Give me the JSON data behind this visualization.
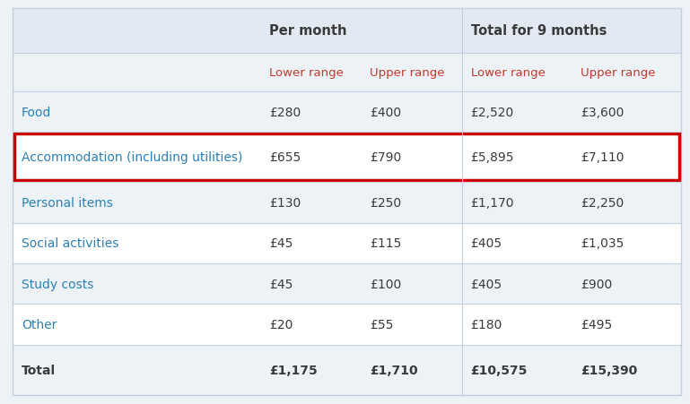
{
  "col_headers_row1": [
    "",
    "Per month",
    "",
    "Total for 9 months",
    ""
  ],
  "col_headers_row2": [
    "",
    "Lower range",
    "Upper range",
    "Lower range",
    "Upper range"
  ],
  "rows": [
    {
      "label": "Food",
      "values": [
        "£280",
        "£400",
        "£2,520",
        "£3,600"
      ],
      "bold": false,
      "highlight": false
    },
    {
      "label": "Accommodation (including utilities)",
      "values": [
        "£655",
        "£790",
        "£5,895",
        "£7,110"
      ],
      "bold": false,
      "highlight": true
    },
    {
      "label": "Personal items",
      "values": [
        "£130",
        "£250",
        "£1,170",
        "£2,250"
      ],
      "bold": false,
      "highlight": false
    },
    {
      "label": "Social activities",
      "values": [
        "£45",
        "£115",
        "£405",
        "£1,035"
      ],
      "bold": false,
      "highlight": false
    },
    {
      "label": "Study costs",
      "values": [
        "£45",
        "£100",
        "£405",
        "£900"
      ],
      "bold": false,
      "highlight": false
    },
    {
      "label": "Other",
      "values": [
        "£20",
        "£55",
        "£180",
        "£495"
      ],
      "bold": false,
      "highlight": false
    },
    {
      "label": "Total",
      "values": [
        "£1,175",
        "£1,710",
        "£10,575",
        "£15,390"
      ],
      "bold": true,
      "highlight": false
    }
  ],
  "bg_light": "#edf2f7",
  "bg_white": "#ffffff",
  "bg_header": "#e2e9f3",
  "text_dark": "#3a3a3a",
  "text_red": "#c0392b",
  "text_blue": "#2980b9",
  "border_red": "#cc0000",
  "border_color": "#c5d0de",
  "fig_width": 7.69,
  "fig_height": 4.52,
  "dpi": 100
}
